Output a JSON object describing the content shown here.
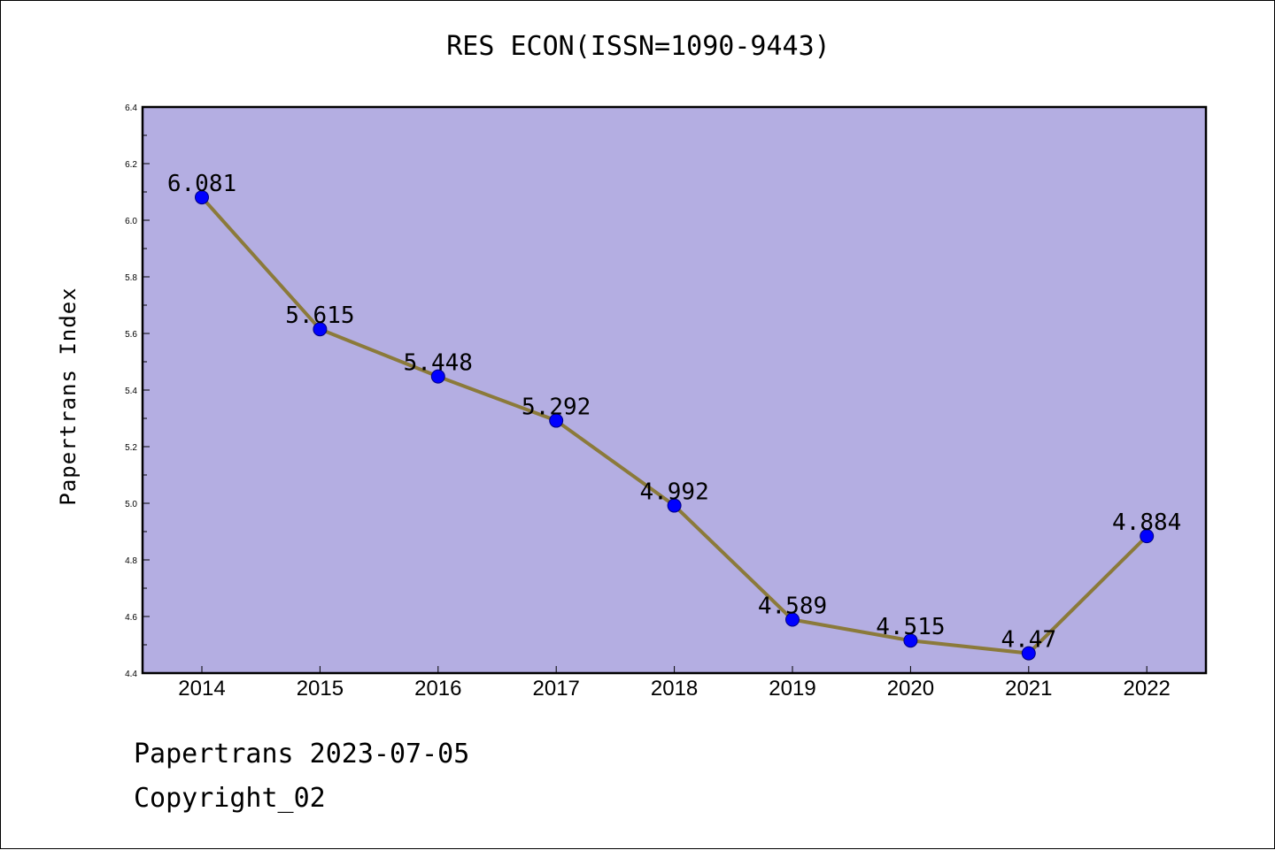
{
  "chart_data": {
    "type": "line",
    "title": "RES ECON(ISSN=1090-9443)",
    "ylabel": "Papertrans Index",
    "xlabel": "",
    "categories": [
      "2014",
      "2015",
      "2016",
      "2017",
      "2018",
      "2019",
      "2020",
      "2021",
      "2022"
    ],
    "values": [
      6.081,
      5.615,
      5.448,
      5.292,
      4.992,
      4.589,
      4.515,
      4.47,
      4.884
    ],
    "data_labels": [
      "6.081",
      "5.615",
      "5.448",
      "5.292",
      "4.992",
      "4.589",
      "4.515",
      "4.47",
      "4.884"
    ],
    "ylim": [
      4.4,
      6.4
    ],
    "yticks": [
      "4.4",
      "4.6",
      "4.8",
      "5.0",
      "5.2",
      "5.4",
      "5.6",
      "5.8",
      "6.0",
      "6.2",
      "6.4"
    ],
    "grid": false,
    "legend": "none",
    "colors": {
      "plot_background": "#b4aee2",
      "line": "#8b7a3a",
      "marker": "#0000ff",
      "marker_edge": "#000080"
    }
  },
  "footer": {
    "line1": "Papertrans 2023-07-05",
    "line2": "Copyright_02"
  }
}
